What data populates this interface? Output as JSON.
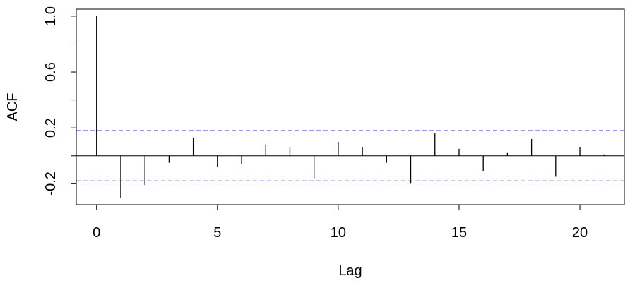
{
  "chart_data": {
    "type": "bar",
    "title": "",
    "xlabel": "Lag",
    "ylabel": "ACF",
    "xlim": [
      -0.84,
      21.84
    ],
    "ylim": [
      -0.35,
      1.05
    ],
    "x_ticks": [
      0,
      5,
      10,
      15,
      20
    ],
    "x_tick_labels": [
      "0",
      "5",
      "10",
      "15",
      "20"
    ],
    "y_ticks": [
      -0.2,
      0.2,
      0.6,
      1.0
    ],
    "y_tick_labels": [
      "-0.2",
      "0.2",
      "0.6",
      "1.0"
    ],
    "y_minor_ticks": [
      0.0,
      0.4,
      0.8
    ],
    "lags": [
      0,
      1,
      2,
      3,
      4,
      5,
      6,
      7,
      8,
      9,
      10,
      11,
      12,
      13,
      14,
      15,
      16,
      17,
      18,
      19,
      20,
      21
    ],
    "acf": [
      1.0,
      -0.3,
      -0.21,
      -0.05,
      0.13,
      -0.08,
      -0.06,
      0.08,
      0.06,
      -0.16,
      0.1,
      0.06,
      -0.05,
      -0.2,
      0.16,
      0.05,
      -0.11,
      0.02,
      0.12,
      -0.15,
      0.06,
      0.01
    ],
    "confidence_bounds": [
      0.18,
      -0.18
    ],
    "confidence_color": "#3333cc",
    "zero_line": true,
    "grid": false
  }
}
